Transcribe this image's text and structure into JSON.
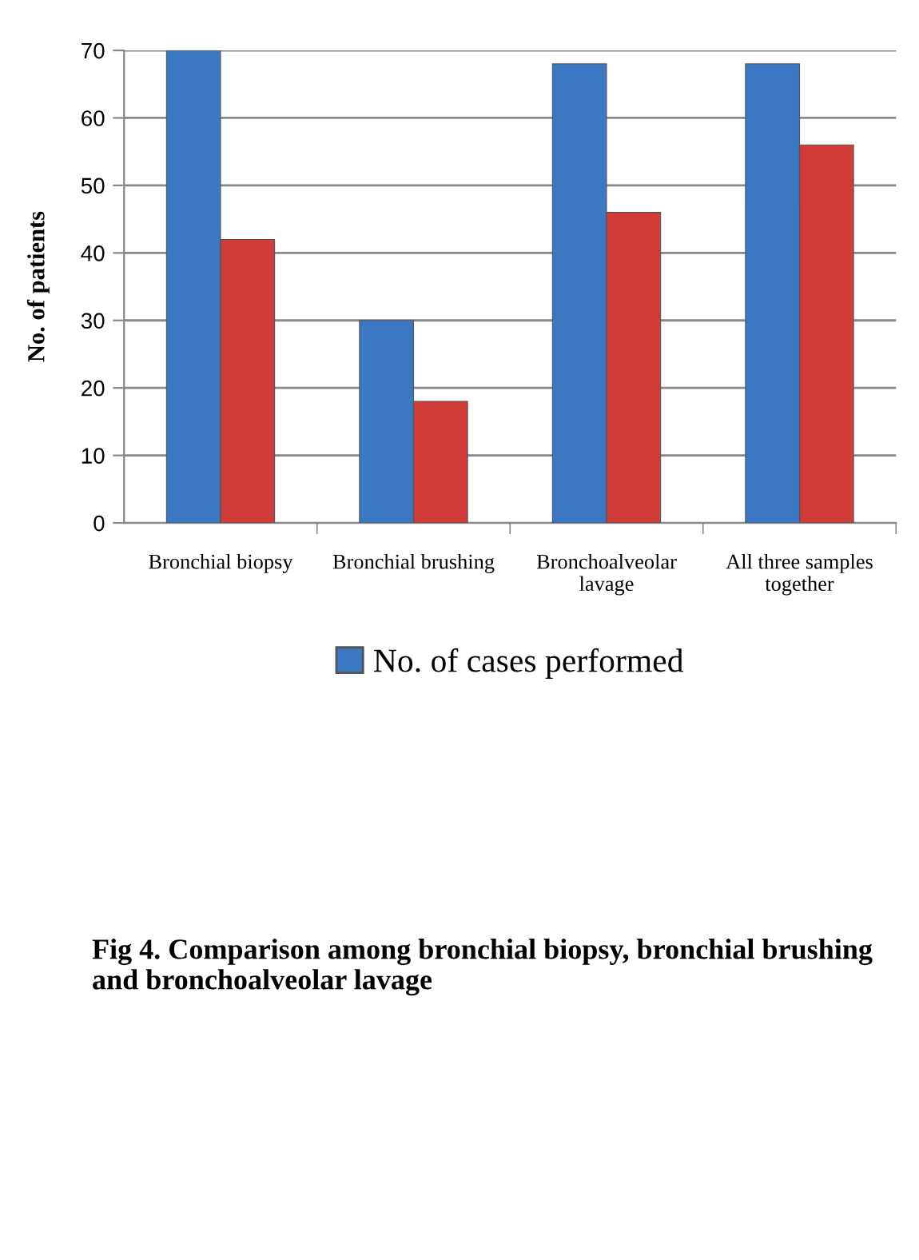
{
  "chart_data": {
    "type": "bar",
    "ylabel": "No. of patients",
    "categories": [
      "Bronchial biopsy",
      "Bronchial brushing",
      "Bronchoalveolar\nlavage",
      "All three samples\ntogether"
    ],
    "series": [
      {
        "name": "No. of cases performed",
        "color": "#3a78c4",
        "values": [
          70,
          30,
          68,
          68
        ]
      },
      {
        "color": "#d03c38",
        "values": [
          42,
          18,
          46,
          56
        ]
      }
    ],
    "ylim": [
      0,
      70
    ],
    "yticks": [
      0,
      10,
      20,
      30,
      40,
      50,
      60,
      70
    ],
    "grid": "y",
    "legend": "bottom",
    "annotations": [
      "Fig 4. Comparison among bronchial biopsy, bronchial brushing and bronchoalveolar lavage"
    ]
  }
}
